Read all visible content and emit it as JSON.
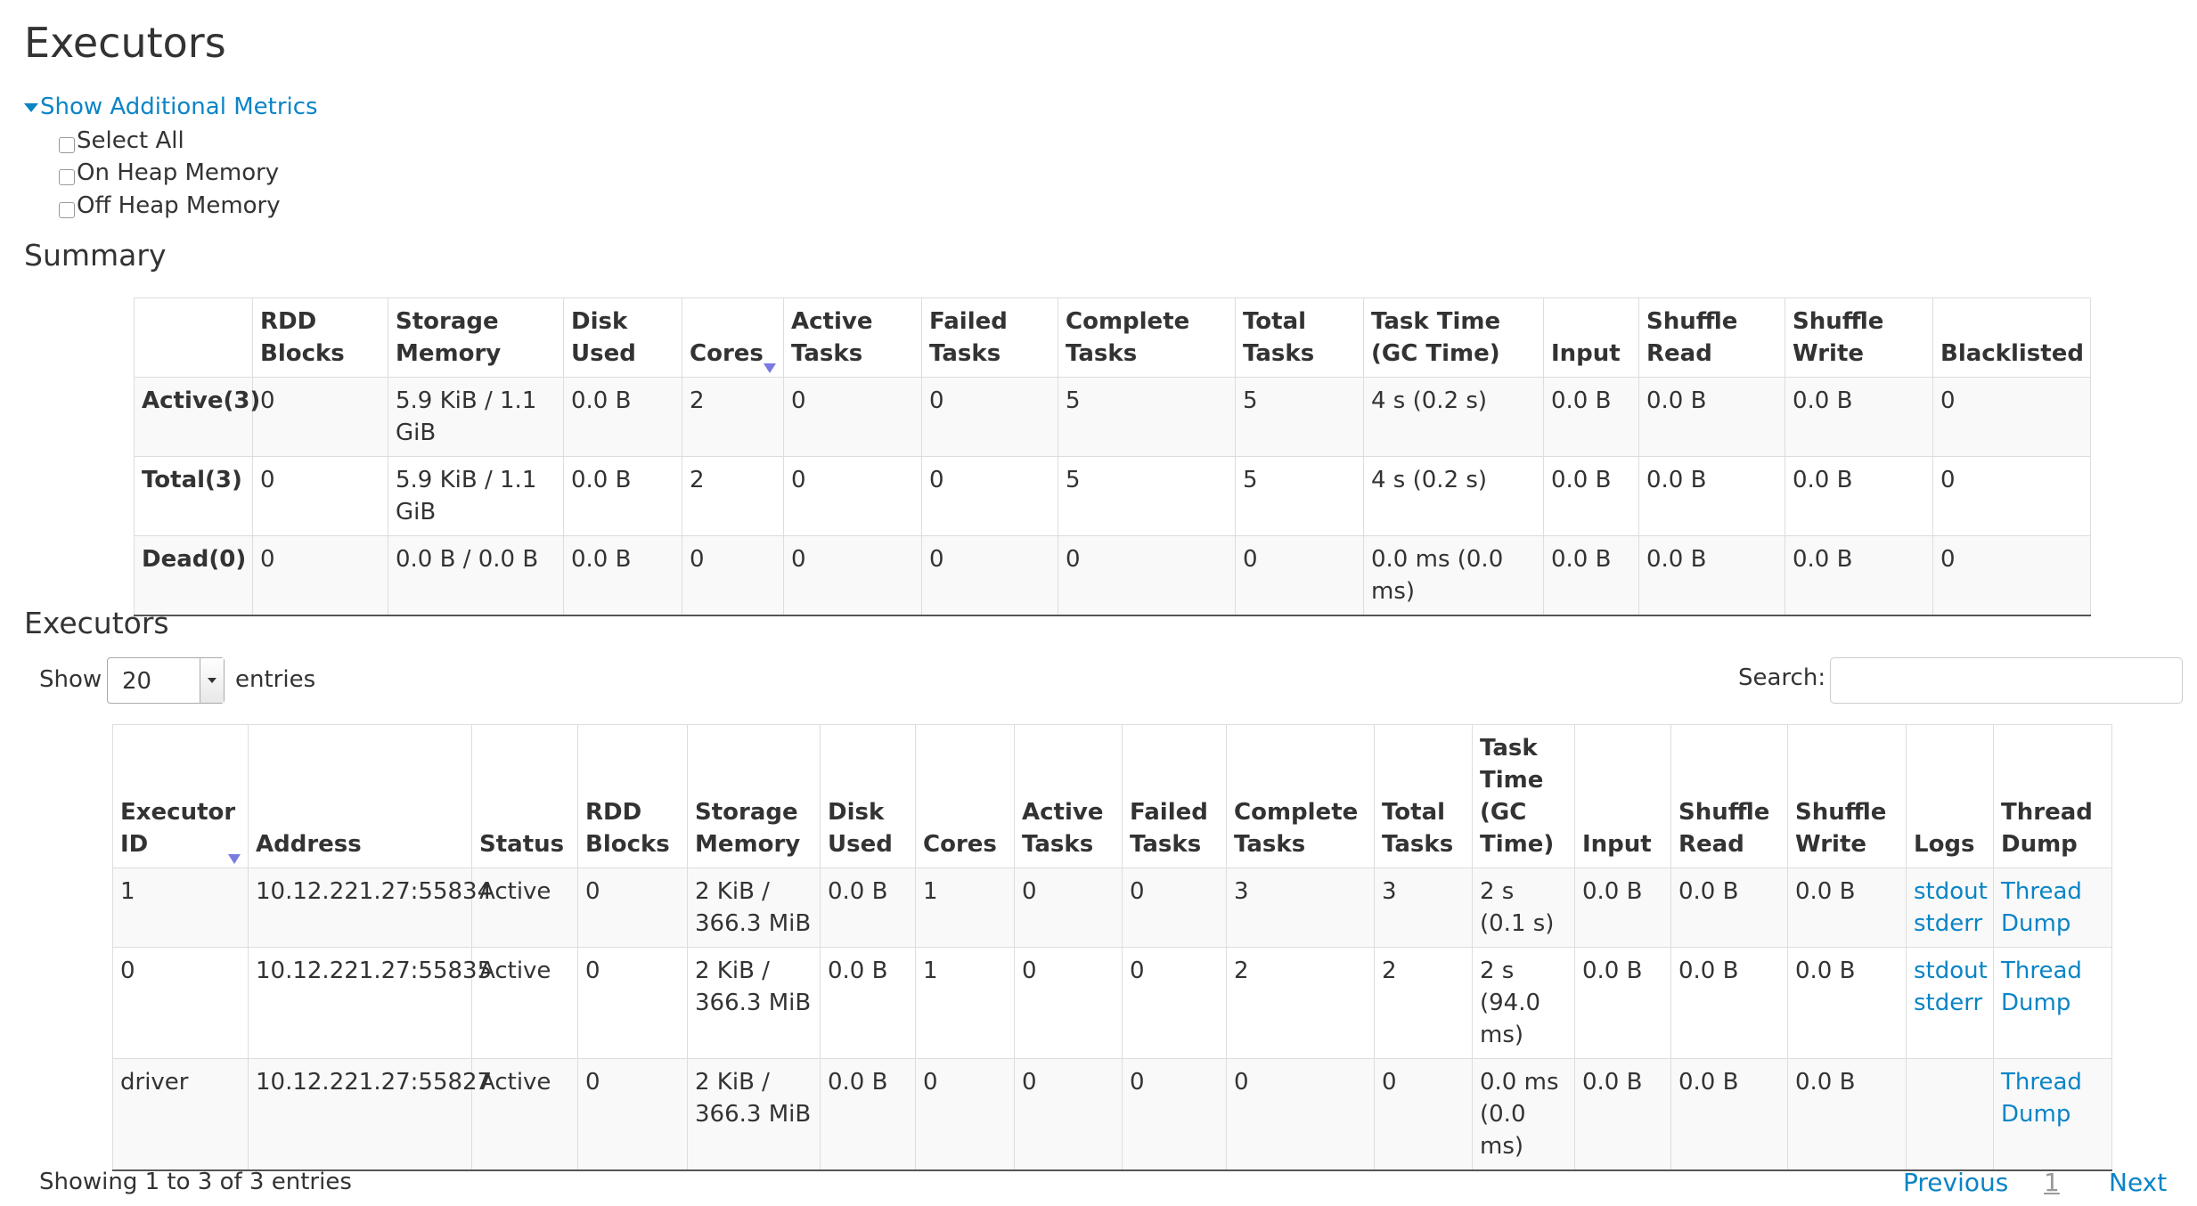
{
  "page": {
    "title": "Executors"
  },
  "metrics": {
    "toggle_label": "Show Additional Metrics",
    "options": [
      {
        "label": "Select All",
        "checked": false
      },
      {
        "label": "On Heap Memory",
        "checked": false
      },
      {
        "label": "Off Heap Memory",
        "checked": false
      }
    ]
  },
  "summary": {
    "heading": "Summary",
    "columns": [
      "",
      "RDD Blocks",
      "Storage Memory",
      "Disk Used",
      "Cores",
      "Active Tasks",
      "Failed Tasks",
      "Complete Tasks",
      "Total Tasks",
      "Task Time (GC Time)",
      "Input",
      "Shuffle Read",
      "Shuffle Write",
      "Blacklisted"
    ],
    "sorted_column": "Cores",
    "rows": [
      [
        "Active(3)",
        "0",
        "5.9 KiB / 1.1 GiB",
        "0.0 B",
        "2",
        "0",
        "0",
        "5",
        "5",
        "4 s (0.2 s)",
        "0.0 B",
        "0.0 B",
        "0.0 B",
        "0"
      ],
      [
        "Total(3)",
        "0",
        "5.9 KiB / 1.1 GiB",
        "0.0 B",
        "2",
        "0",
        "0",
        "5",
        "5",
        "4 s (0.2 s)",
        "0.0 B",
        "0.0 B",
        "0.0 B",
        "0"
      ],
      [
        "Dead(0)",
        "0",
        "0.0 B / 0.0 B",
        "0.0 B",
        "0",
        "0",
        "0",
        "0",
        "0",
        "0.0 ms (0.0 ms)",
        "0.0 B",
        "0.0 B",
        "0.0 B",
        "0"
      ]
    ]
  },
  "executors": {
    "heading": "Executors",
    "show_label": "Show",
    "entries_label": "entries",
    "page_size": "20",
    "search_label": "Search:",
    "search_value": "",
    "columns": [
      "Executor ID",
      "Address",
      "Status",
      "RDD Blocks",
      "Storage Memory",
      "Disk Used",
      "Cores",
      "Active Tasks",
      "Failed Tasks",
      "Complete Tasks",
      "Total Tasks",
      "Task Time (GC Time)",
      "Input",
      "Shuffle Read",
      "Shuffle Write",
      "Logs",
      "Thread Dump"
    ],
    "sorted_column": "Executor ID",
    "rows": [
      {
        "cells": [
          "1",
          "10.12.221.27:55834",
          "Active",
          "0",
          "2 KiB / 366.3 MiB",
          "0.0 B",
          "1",
          "0",
          "0",
          "3",
          "3",
          "2 s (0.1 s)",
          "0.0 B",
          "0.0 B",
          "0.0 B"
        ],
        "logs": [
          "stdout",
          "stderr"
        ],
        "thread_dump": "Thread Dump"
      },
      {
        "cells": [
          "0",
          "10.12.221.27:55835",
          "Active",
          "0",
          "2 KiB / 366.3 MiB",
          "0.0 B",
          "1",
          "0",
          "0",
          "2",
          "2",
          "2 s (94.0 ms)",
          "0.0 B",
          "0.0 B",
          "0.0 B"
        ],
        "logs": [
          "stdout",
          "stderr"
        ],
        "thread_dump": "Thread Dump"
      },
      {
        "cells": [
          "driver",
          "10.12.221.27:55827",
          "Active",
          "0",
          "2 KiB / 366.3 MiB",
          "0.0 B",
          "0",
          "0",
          "0",
          "0",
          "0",
          "0.0 ms (0.0 ms)",
          "0.0 B",
          "0.0 B",
          "0.0 B"
        ],
        "logs": [],
        "thread_dump": "Thread Dump"
      }
    ],
    "info": "Showing 1 to 3 of 3 entries",
    "pagination": {
      "previous": "Previous",
      "current": "1",
      "next": "Next"
    }
  },
  "colors": {
    "link": "#0b84c6",
    "sort_arrow": "#7a7ae0",
    "row_stripe": "#f9f9f9"
  }
}
